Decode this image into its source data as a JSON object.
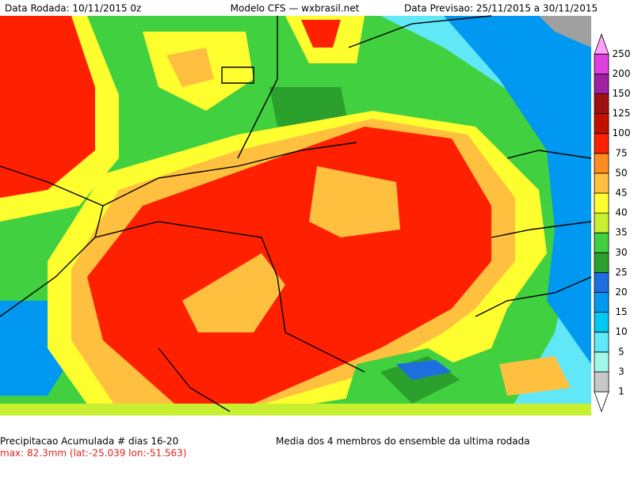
{
  "header": {
    "left": "Data Rodada: 10/11/2015 0z",
    "center": "Modelo CFS — wxbrasil.net",
    "right": "Data Previsao: 25/11/2015 a 30/11/2015"
  },
  "colorbar": {
    "levels": [
      1,
      3,
      5,
      10,
      15,
      20,
      25,
      30,
      35,
      40,
      45,
      50,
      75,
      100,
      125,
      150,
      200,
      250
    ],
    "colors": [
      "#ffffff",
      "#c8c8c8",
      "#a0f8e8",
      "#60e8f8",
      "#00c8f0",
      "#0098f0",
      "#1e6ee0",
      "#2ca02c",
      "#40d040",
      "#c8f030",
      "#ffff30",
      "#ffc040",
      "#ff8c20",
      "#ff2000",
      "#c01000",
      "#a01010",
      "#a020a0",
      "#e040e0",
      "#ffa0ff"
    ]
  },
  "footer": {
    "title": "Precipitacao Acumulada # dias 16-20",
    "max": "max: 82.3mm (lat:-25.039 lon:-51.563)",
    "subtitle": "Media dos 4 membros do ensemble da ultima rodada"
  }
}
